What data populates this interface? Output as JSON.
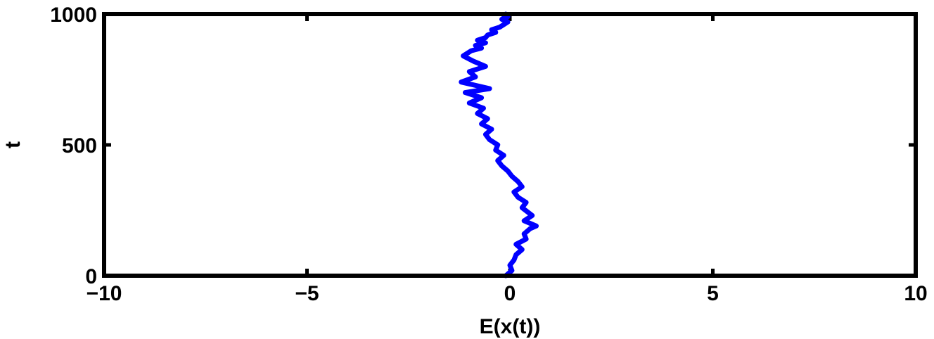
{
  "chart_data": {
    "type": "line",
    "title": "",
    "xlabel": "E(x(t))",
    "ylabel": "t",
    "xlim": [
      -10,
      10
    ],
    "ylim": [
      0,
      1000
    ],
    "xticks": [
      -10,
      -5,
      0,
      5,
      10
    ],
    "xtick_labels": [
      "−10",
      "−5",
      "0",
      "5",
      "10"
    ],
    "yticks": [
      0,
      500,
      1000
    ],
    "ytick_labels": [
      "0",
      "500",
      "1000"
    ],
    "grid": false,
    "series": [
      {
        "color": "#0000ff",
        "x": [
          -0.1,
          0.05,
          0.0,
          0.1,
          0.15,
          0.3,
          0.15,
          0.4,
          0.35,
          0.5,
          0.65,
          0.35,
          0.55,
          0.3,
          0.4,
          0.2,
          0.1,
          0.3,
          0.2,
          0.05,
          -0.05,
          -0.2,
          -0.3,
          -0.15,
          -0.35,
          -0.3,
          -0.5,
          -0.6,
          -0.45,
          -0.7,
          -0.55,
          -0.8,
          -0.65,
          -1.0,
          -0.7,
          -1.1,
          -0.5,
          -1.2,
          -0.85,
          -1.0,
          -0.6,
          -0.9,
          -1.15,
          -0.95,
          -0.7,
          -0.85,
          -0.6,
          -0.8,
          -0.6,
          -0.55,
          -0.35,
          -0.45,
          -0.25,
          -0.15,
          -0.05,
          -0.2,
          -0.05,
          -0.15,
          -0.1
        ],
        "y": [
          0,
          20,
          40,
          60,
          80,
          100,
          120,
          140,
          160,
          180,
          190,
          210,
          230,
          260,
          280,
          300,
          320,
          340,
          360,
          380,
          400,
          420,
          440,
          460,
          480,
          500,
          520,
          540,
          560,
          580,
          600,
          620,
          640,
          660,
          680,
          700,
          715,
          740,
          760,
          780,
          800,
          820,
          840,
          860,
          870,
          880,
          890,
          900,
          910,
          920,
          930,
          940,
          950,
          960,
          970,
          980,
          990,
          995,
          1000
        ]
      }
    ]
  }
}
